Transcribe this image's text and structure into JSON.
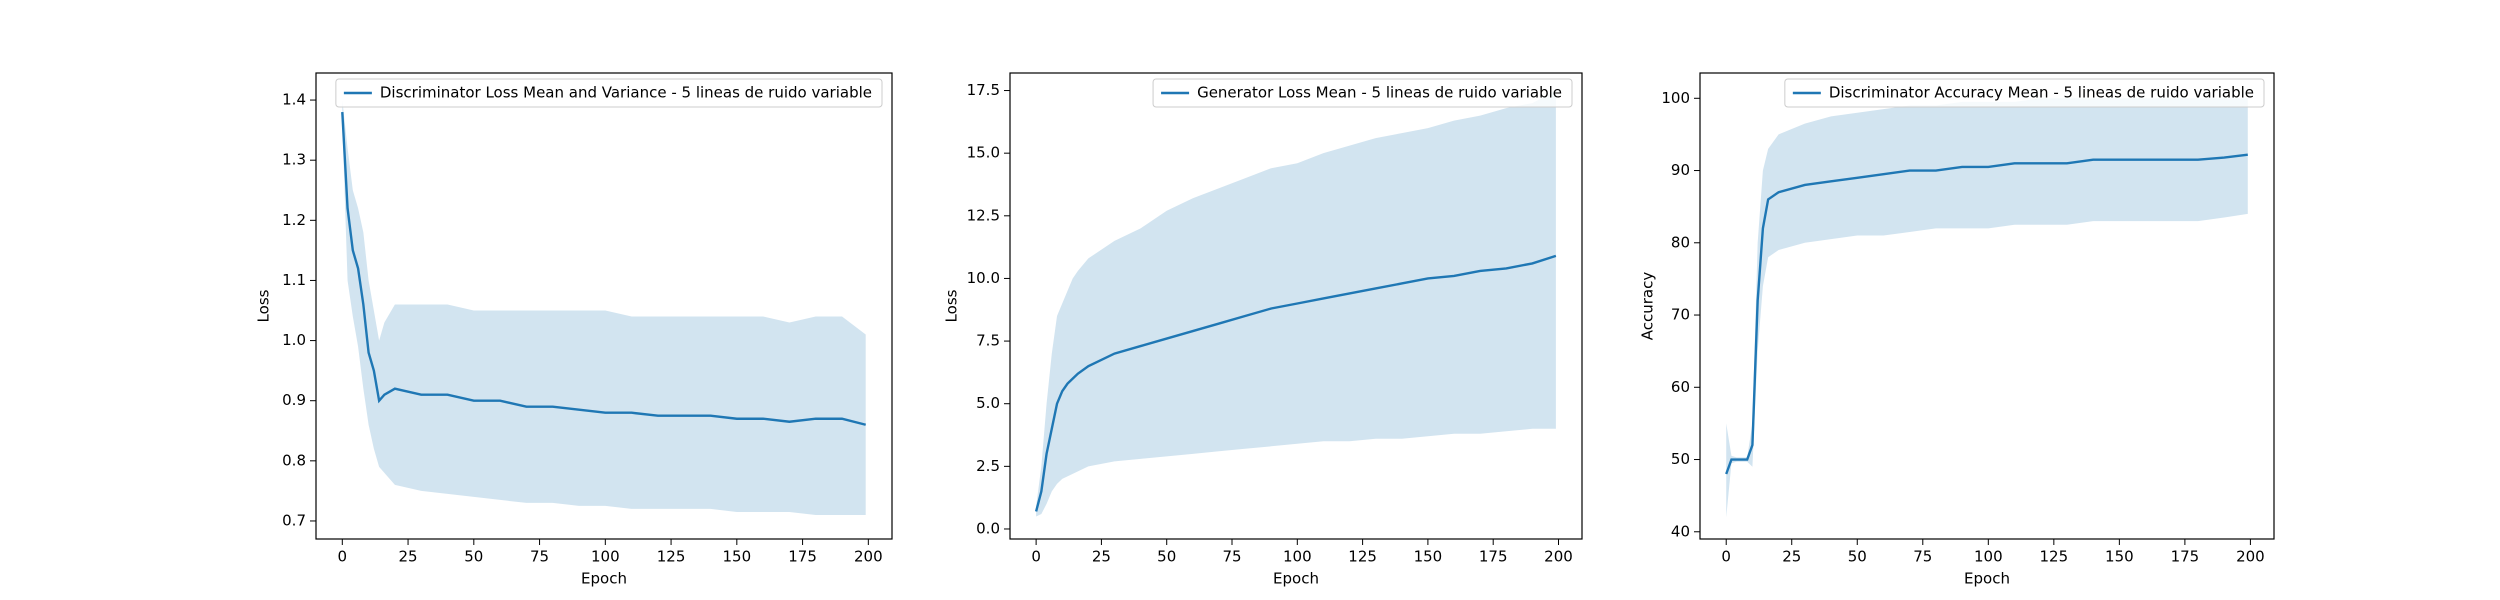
{
  "chart_data": [
    {
      "type": "line",
      "x_label": "Epoch",
      "y_label": "Loss",
      "legend": "upper right",
      "x": [
        0,
        2,
        4,
        6,
        8,
        10,
        12,
        14,
        16,
        20,
        30,
        40,
        50,
        60,
        70,
        80,
        90,
        100,
        110,
        120,
        130,
        140,
        150,
        160,
        170,
        180,
        190,
        199
      ],
      "series": [
        {
          "name": "Discriminator Loss Mean and Variance - 5 lineas de ruido variable",
          "color": "#1f77b4",
          "values": [
            1.38,
            1.22,
            1.15,
            1.12,
            1.06,
            0.98,
            0.95,
            0.9,
            0.91,
            0.92,
            0.91,
            0.91,
            0.9,
            0.9,
            0.89,
            0.89,
            0.885,
            0.88,
            0.88,
            0.875,
            0.875,
            0.875,
            0.87,
            0.87,
            0.865,
            0.87,
            0.87,
            0.86
          ],
          "band_upper": [
            1.4,
            1.32,
            1.25,
            1.22,
            1.18,
            1.1,
            1.05,
            1.0,
            1.03,
            1.06,
            1.06,
            1.06,
            1.05,
            1.05,
            1.05,
            1.05,
            1.05,
            1.05,
            1.04,
            1.04,
            1.04,
            1.04,
            1.04,
            1.04,
            1.03,
            1.04,
            1.04,
            1.01
          ],
          "band_lower": [
            1.36,
            1.1,
            1.04,
            0.99,
            0.92,
            0.86,
            0.82,
            0.79,
            0.78,
            0.76,
            0.75,
            0.745,
            0.74,
            0.735,
            0.73,
            0.73,
            0.725,
            0.725,
            0.72,
            0.72,
            0.72,
            0.72,
            0.715,
            0.715,
            0.715,
            0.71,
            0.71,
            0.71
          ]
        }
      ],
      "xlim": [
        -10,
        209
      ],
      "xticks": [
        0,
        25,
        50,
        75,
        100,
        125,
        150,
        175,
        200
      ],
      "ylim": [
        0.67,
        1.445
      ],
      "yticks": [
        0.7,
        0.8,
        0.9,
        {
          "value": 1,
          "label": "1.0"
        },
        1.1,
        1.2,
        1.3,
        1.4
      ]
    },
    {
      "type": "line",
      "x_label": "Epoch",
      "y_label": "Loss",
      "legend": "upper right",
      "x": [
        0,
        2,
        4,
        6,
        8,
        10,
        12,
        14,
        16,
        20,
        30,
        40,
        50,
        60,
        70,
        80,
        90,
        100,
        110,
        120,
        130,
        140,
        150,
        160,
        170,
        180,
        190,
        199
      ],
      "series": [
        {
          "name": "Generator Loss Mean - 5 lineas de ruido variable",
          "color": "#1f77b4",
          "values": [
            0.7,
            1.5,
            3,
            4,
            5,
            5.5,
            5.8,
            6,
            6.2,
            6.5,
            7,
            7.3,
            7.6,
            7.9,
            8.2,
            8.5,
            8.8,
            9,
            9.2,
            9.4,
            9.6,
            9.8,
            10,
            10.1,
            10.3,
            10.4,
            10.6,
            10.9
          ],
          "band_upper": [
            0.9,
            2.5,
            5,
            7,
            8.5,
            9,
            9.5,
            10,
            10.3,
            10.8,
            11.5,
            12,
            12.7,
            13.2,
            13.6,
            14,
            14.4,
            14.6,
            15,
            15.3,
            15.6,
            15.8,
            16,
            16.3,
            16.5,
            16.8,
            17,
            17.5
          ],
          "band_lower": [
            0.5,
            0.6,
            1,
            1.5,
            1.8,
            2,
            2.1,
            2.2,
            2.3,
            2.5,
            2.7,
            2.8,
            2.9,
            3,
            3.1,
            3.2,
            3.3,
            3.4,
            3.5,
            3.5,
            3.6,
            3.6,
            3.7,
            3.8,
            3.8,
            3.9,
            4,
            4
          ]
        }
      ],
      "xlim": [
        -10,
        209
      ],
      "xticks": [
        0,
        25,
        50,
        75,
        100,
        125,
        150,
        175,
        200
      ],
      "ylim": [
        -0.4,
        18.2
      ],
      "yticks": [
        {
          "value": 0,
          "label": "0.0"
        },
        2.5,
        {
          "value": 5,
          "label": "5.0"
        },
        7.5,
        {
          "value": 10,
          "label": "10.0"
        },
        12.5,
        {
          "value": 15,
          "label": "15.0"
        },
        17.5
      ]
    },
    {
      "type": "line",
      "x_label": "Epoch",
      "y_label": "Accuracy",
      "legend": "upper right",
      "x": [
        0,
        2,
        4,
        6,
        8,
        10,
        12,
        14,
        16,
        20,
        30,
        40,
        50,
        60,
        70,
        80,
        90,
        100,
        110,
        120,
        130,
        140,
        150,
        160,
        170,
        180,
        190,
        199
      ],
      "series": [
        {
          "name": "Discriminator Accuracy Mean - 5 lineas de ruido variable",
          "color": "#1f77b4",
          "values": [
            48,
            50,
            50,
            50,
            50,
            52,
            72,
            82,
            86,
            87,
            88,
            88.5,
            89,
            89.5,
            90,
            90,
            90.5,
            90.5,
            91,
            91,
            91,
            91.5,
            91.5,
            91.5,
            91.5,
            91.5,
            91.8,
            92.2
          ],
          "band_upper": [
            55,
            50.5,
            50.3,
            50.3,
            50.3,
            55,
            80,
            90,
            93,
            95,
            96.5,
            97.5,
            98,
            98.5,
            99,
            99,
            99.5,
            99.5,
            99.5,
            100,
            100,
            100,
            100,
            100,
            100,
            100,
            100,
            100
          ],
          "band_lower": [
            42,
            49.5,
            49.7,
            49.7,
            49.7,
            49,
            65,
            74,
            78,
            79,
            80,
            80.5,
            81,
            81,
            81.5,
            82,
            82,
            82,
            82.5,
            82.5,
            82.5,
            83,
            83,
            83,
            83,
            83,
            83.5,
            84
          ]
        }
      ],
      "xlim": [
        -10,
        209
      ],
      "xticks": [
        0,
        25,
        50,
        75,
        100,
        125,
        150,
        175,
        200
      ],
      "ylim": [
        39,
        103.5
      ],
      "yticks": [
        40,
        50,
        60,
        70,
        80,
        90,
        100
      ]
    }
  ]
}
